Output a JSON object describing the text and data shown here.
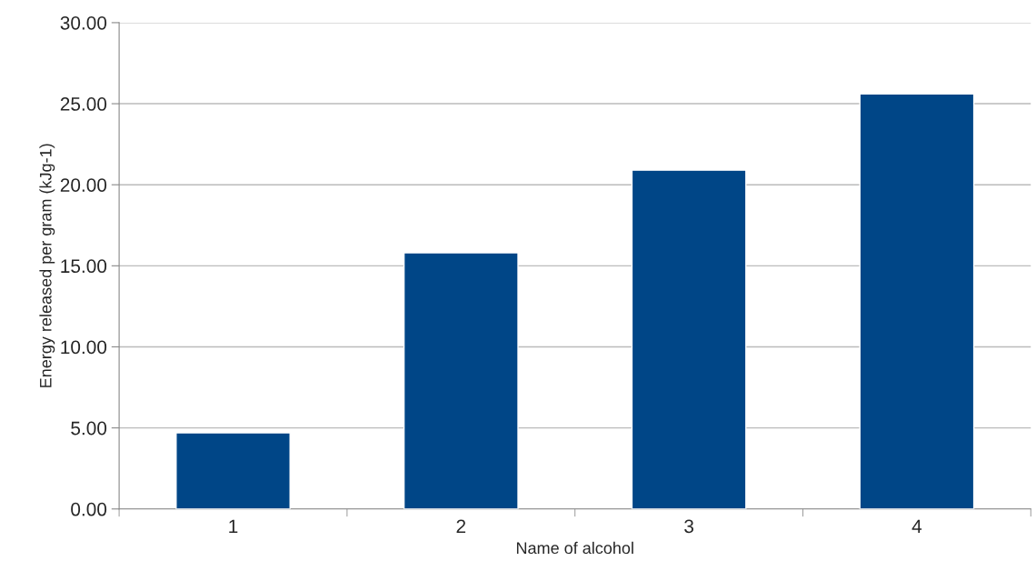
{
  "chart_data": {
    "type": "bar",
    "xlabel": "Name of alcohol",
    "ylabel": "Energy released per gram (kJg-1)",
    "categories": [
      "1",
      "2",
      "3",
      "4"
    ],
    "values": [
      4.7,
      15.8,
      20.9,
      25.6
    ],
    "color": "#004687",
    "ylim": [
      0,
      30
    ],
    "yticks": [
      {
        "value": 0,
        "label": "0.00"
      },
      {
        "value": 5,
        "label": "5.00"
      },
      {
        "value": 10,
        "label": "10.00"
      },
      {
        "value": 15,
        "label": "15.00"
      },
      {
        "value": 20,
        "label": "20.00"
      },
      {
        "value": 25,
        "label": "25.00"
      },
      {
        "value": 30,
        "label": "30.00"
      }
    ],
    "grid": "y",
    "legend": false
  }
}
